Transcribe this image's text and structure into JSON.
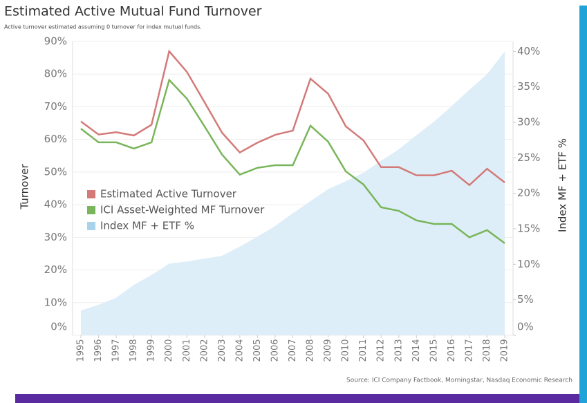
{
  "chart_data": {
    "type": "line",
    "title": "Estimated Active Mutual Fund Turnover",
    "subtitle": "Active turnover estimated assuming 0 turnover for index mutual funds.",
    "source": "Source: ICI Company Factbook, Morningstar, Nasdaq Economic Research",
    "y_label": "Turnover",
    "y2_label": "Index MF + ETF %",
    "categories": [
      "1995",
      "1996",
      "1997",
      "1998",
      "1999",
      "2000",
      "2001",
      "2002",
      "2003",
      "2004",
      "2005",
      "2006",
      "2007",
      "2008",
      "2009",
      "2010",
      "2011",
      "2012",
      "2013",
      "2014",
      "2015",
      "2016",
      "2017",
      "2018",
      "2019"
    ],
    "series": [
      {
        "name": "Estimated Active Turnover",
        "color": "#d37a78",
        "values": [
          65.5,
          61.5,
          62.2,
          61.2,
          64.5,
          87,
          80.7,
          71.4,
          62,
          56,
          59,
          61.4,
          62.7,
          78.6,
          74,
          64,
          59.7,
          51.5,
          51.5,
          49,
          49,
          50.4,
          46,
          51,
          46.8
        ]
      },
      {
        "name": "ICI Asset-Weighted MF Turnover",
        "color": "#79b55a",
        "values": [
          63.3,
          59.1,
          59.1,
          57.2,
          59.1,
          78.2,
          72.5,
          64,
          55.3,
          49.2,
          51.3,
          52.1,
          52.1,
          64.2,
          59.3,
          50.2,
          46.2,
          39.2,
          38.1,
          35.2,
          34.1,
          34.1,
          30,
          32.2,
          28.2
        ]
      },
      {
        "name": "Index MF + ETF %",
        "color": "#a9d3ec",
        "area_color": "#deeef8",
        "type": "area",
        "axis": "y2",
        "values": [
          3.5,
          4.3,
          5.3,
          7.1,
          8.5,
          10.1,
          10.4,
          10.8,
          11.2,
          12.5,
          13.9,
          15.4,
          17.2,
          18.9,
          20.6,
          21.7,
          22.9,
          24.6,
          26.2,
          28.2,
          30.1,
          32.3,
          34.6,
          36.8,
          40
        ]
      }
    ],
    "ylim": [
      0,
      90
    ],
    "yticks": [
      {
        "value": 0,
        "label": "0%"
      },
      {
        "value": 10,
        "label": "10%"
      },
      {
        "value": 20,
        "label": "20%"
      },
      {
        "value": 30,
        "label": "30%"
      },
      {
        "value": 40,
        "label": "40%"
      },
      {
        "value": 50,
        "label": "50%"
      },
      {
        "value": 60,
        "label": "60%"
      },
      {
        "value": 70,
        "label": "70%"
      },
      {
        "value": 80,
        "label": "80%"
      },
      {
        "value": 90,
        "label": "90%"
      }
    ],
    "y2lim": [
      0,
      41.4
    ],
    "y2ticks": [
      {
        "value": 0,
        "label": "0%"
      },
      {
        "value": 5,
        "label": "5%"
      },
      {
        "value": 10,
        "label": "10%"
      },
      {
        "value": 15,
        "label": "15%"
      },
      {
        "value": 20,
        "label": "20%"
      },
      {
        "value": 25,
        "label": "25%"
      },
      {
        "value": 30,
        "label": "30%"
      },
      {
        "value": 35,
        "label": "35%"
      },
      {
        "value": 40,
        "label": "40%"
      }
    ],
    "grid": true,
    "legend": "center-left"
  }
}
